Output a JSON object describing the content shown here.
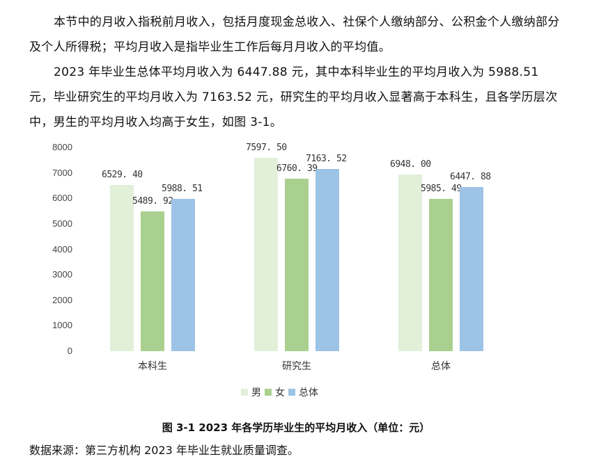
{
  "paragraphs": [
    "本节中的月收入指税前月收入，包括月度现金总收入、社保个人缴纳部分、公积金个人缴纳部分及个人所得税；平均月收入是指毕业生工作后每月月收入的平均值。",
    "2023 年毕业生总体平均月收入为 6447.88 元，其中本科毕业生的平均月收入为 5988.51 元，毕业研究生的平均月收入为 7163.52 元，研究生的平均月收入显著高于本科生，且各学历层次中，男生的平均月收入均高于女生，如图 3-1。"
  ],
  "caption": "图  3-1    2023 年各学历毕业生的平均月收入（单位：元）",
  "source": "数据来源：第三方机构 2023 年毕业生就业质量调查。",
  "colors": {
    "男": "#e2efd9",
    "女": "#a9d08e",
    "总体": "#9dc3e6"
  },
  "chart_data": {
    "type": "bar",
    "title": "2023 年各学历毕业生的平均月收入（单位：元）",
    "xlabel": "",
    "ylabel": "",
    "categories": [
      "本科生",
      "研究生",
      "总体"
    ],
    "series": [
      {
        "name": "男",
        "values": [
          6529.4,
          7597.5,
          6948.0
        ],
        "labels": [
          "6529. 40",
          "7597. 50",
          "6948. 00"
        ]
      },
      {
        "name": "女",
        "values": [
          5489.92,
          6760.39,
          5985.49
        ],
        "labels": [
          "5489. 92",
          "6760. 39",
          "5985. 49"
        ]
      },
      {
        "name": "总体",
        "values": [
          5988.51,
          7163.52,
          6447.88
        ],
        "labels": [
          "5988. 51",
          "7163. 52",
          "6447. 88"
        ]
      }
    ],
    "yticks": [
      "0",
      "1000",
      "2000",
      "3000",
      "4000",
      "5000",
      "6000",
      "7000",
      "8000"
    ],
    "ylim": [
      0,
      8000
    ],
    "grid": false,
    "legend_position": "bottom"
  }
}
